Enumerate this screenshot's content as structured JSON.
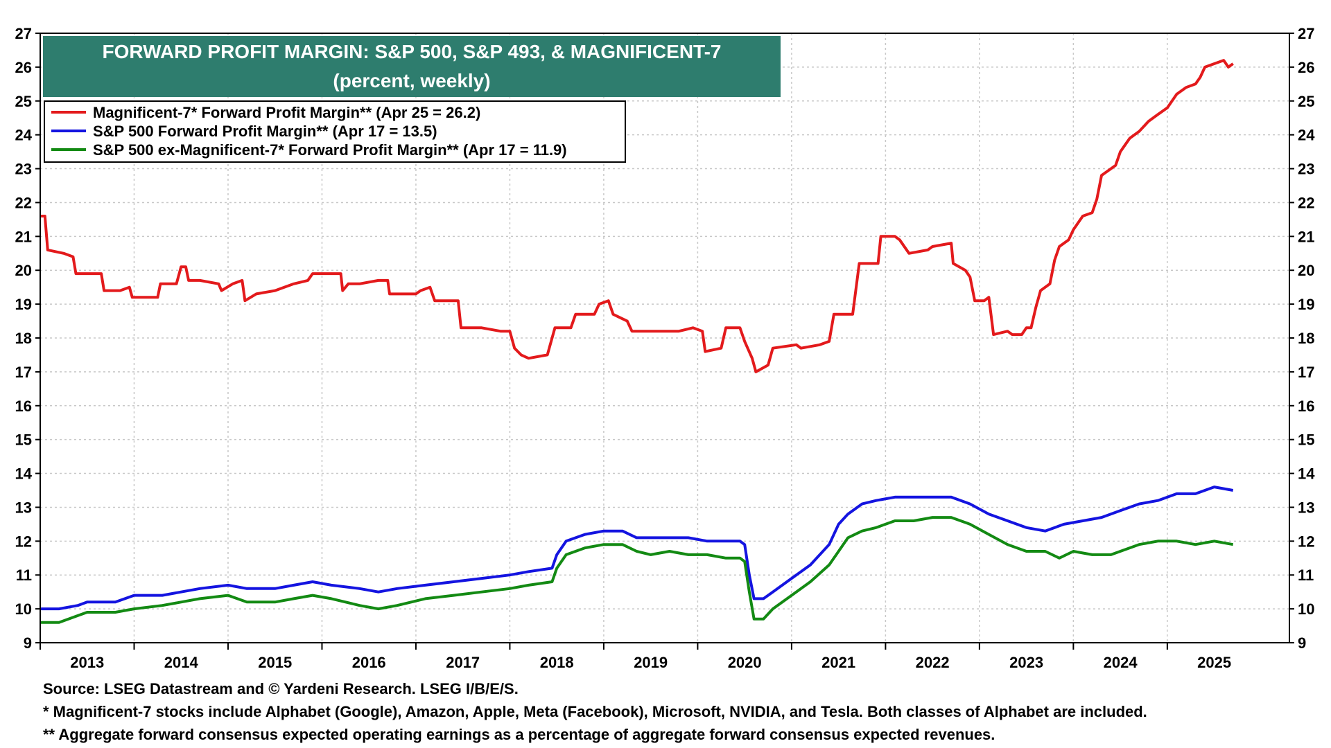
{
  "colors": {
    "mag7": "#e31a1c",
    "sp500": "#1414e0",
    "sp493": "#138a13",
    "title_bg": "#2e7d6e",
    "grid": "#c8c8c8"
  },
  "chart_data": {
    "type": "line",
    "title": "FORWARD PROFIT MARGIN: S&P 500, S&P 493, & MAGNIFICENT-7",
    "subtitle": "(percent, weekly)",
    "ylim": [
      9,
      27
    ],
    "yticks": [
      "9",
      "10",
      "11",
      "12",
      "13",
      "14",
      "15",
      "16",
      "17",
      "18",
      "19",
      "20",
      "21",
      "22",
      "23",
      "24",
      "25",
      "26",
      "27"
    ],
    "xlim": [
      2012.5,
      2025.8
    ],
    "xticks": [
      "2013",
      "2014",
      "2015",
      "2016",
      "2017",
      "2018",
      "2019",
      "2020",
      "2021",
      "2022",
      "2023",
      "2024",
      "2025"
    ],
    "grid": true,
    "legend_position": "top-left",
    "series": [
      {
        "name": "Magnificent-7* Forward Profit Margin** (Apr 25 = 26.2)",
        "color_key": "mag7",
        "points": [
          [
            2012.5,
            21.6
          ],
          [
            2012.55,
            21.6
          ],
          [
            2012.58,
            20.6
          ],
          [
            2012.75,
            20.5
          ],
          [
            2012.85,
            20.4
          ],
          [
            2012.88,
            19.9
          ],
          [
            2013.05,
            19.9
          ],
          [
            2013.15,
            19.9
          ],
          [
            2013.18,
            19.4
          ],
          [
            2013.35,
            19.4
          ],
          [
            2013.45,
            19.5
          ],
          [
            2013.48,
            19.2
          ],
          [
            2013.6,
            19.2
          ],
          [
            2013.75,
            19.2
          ],
          [
            2013.78,
            19.6
          ],
          [
            2013.9,
            19.6
          ],
          [
            2013.95,
            19.6
          ],
          [
            2014.0,
            20.1
          ],
          [
            2014.05,
            20.1
          ],
          [
            2014.08,
            19.7
          ],
          [
            2014.2,
            19.7
          ],
          [
            2014.4,
            19.6
          ],
          [
            2014.43,
            19.4
          ],
          [
            2014.55,
            19.6
          ],
          [
            2014.65,
            19.7
          ],
          [
            2014.68,
            19.1
          ],
          [
            2014.8,
            19.3
          ],
          [
            2015.0,
            19.4
          ],
          [
            2015.2,
            19.6
          ],
          [
            2015.35,
            19.7
          ],
          [
            2015.4,
            19.9
          ],
          [
            2015.55,
            19.9
          ],
          [
            2015.7,
            19.9
          ],
          [
            2015.72,
            19.4
          ],
          [
            2015.78,
            19.6
          ],
          [
            2015.9,
            19.6
          ],
          [
            2016.1,
            19.7
          ],
          [
            2016.2,
            19.7
          ],
          [
            2016.22,
            19.3
          ],
          [
            2016.4,
            19.3
          ],
          [
            2016.5,
            19.3
          ],
          [
            2016.55,
            19.4
          ],
          [
            2016.65,
            19.5
          ],
          [
            2016.7,
            19.1
          ],
          [
            2016.95,
            19.1
          ],
          [
            2016.98,
            18.3
          ],
          [
            2017.2,
            18.3
          ],
          [
            2017.4,
            18.2
          ],
          [
            2017.5,
            18.2
          ],
          [
            2017.55,
            17.7
          ],
          [
            2017.62,
            17.5
          ],
          [
            2017.7,
            17.4
          ],
          [
            2017.9,
            17.5
          ],
          [
            2017.98,
            18.3
          ],
          [
            2018.15,
            18.3
          ],
          [
            2018.2,
            18.7
          ],
          [
            2018.4,
            18.7
          ],
          [
            2018.45,
            19.0
          ],
          [
            2018.55,
            19.1
          ],
          [
            2018.6,
            18.7
          ],
          [
            2018.75,
            18.5
          ],
          [
            2018.8,
            18.2
          ],
          [
            2018.9,
            18.2
          ],
          [
            2019.0,
            18.2
          ],
          [
            2019.1,
            18.2
          ],
          [
            2019.3,
            18.2
          ],
          [
            2019.45,
            18.3
          ],
          [
            2019.55,
            18.2
          ],
          [
            2019.58,
            17.6
          ],
          [
            2019.75,
            17.7
          ],
          [
            2019.8,
            18.3
          ],
          [
            2019.95,
            18.3
          ],
          [
            2020.0,
            17.9
          ],
          [
            2020.08,
            17.4
          ],
          [
            2020.12,
            17.0
          ],
          [
            2020.25,
            17.2
          ],
          [
            2020.3,
            17.7
          ],
          [
            2020.55,
            17.8
          ],
          [
            2020.6,
            17.7
          ],
          [
            2020.8,
            17.8
          ],
          [
            2020.9,
            17.9
          ],
          [
            2020.95,
            18.7
          ],
          [
            2021.15,
            18.7
          ],
          [
            2021.22,
            20.2
          ],
          [
            2021.35,
            20.2
          ],
          [
            2021.42,
            20.2
          ],
          [
            2021.45,
            21.0
          ],
          [
            2021.6,
            21.0
          ],
          [
            2021.65,
            20.9
          ],
          [
            2021.75,
            20.5
          ],
          [
            2021.95,
            20.6
          ],
          [
            2022.0,
            20.7
          ],
          [
            2022.2,
            20.8
          ],
          [
            2022.22,
            20.2
          ],
          [
            2022.35,
            20.0
          ],
          [
            2022.4,
            19.8
          ],
          [
            2022.45,
            19.1
          ],
          [
            2022.55,
            19.1
          ],
          [
            2022.6,
            19.2
          ],
          [
            2022.65,
            18.1
          ],
          [
            2022.8,
            18.2
          ],
          [
            2022.85,
            18.1
          ],
          [
            2022.95,
            18.1
          ],
          [
            2023.0,
            18.3
          ],
          [
            2023.05,
            18.3
          ],
          [
            2023.1,
            18.9
          ],
          [
            2023.15,
            19.4
          ],
          [
            2023.25,
            19.6
          ],
          [
            2023.3,
            20.3
          ],
          [
            2023.35,
            20.7
          ],
          [
            2023.45,
            20.9
          ],
          [
            2023.5,
            21.2
          ],
          [
            2023.6,
            21.6
          ],
          [
            2023.7,
            21.7
          ],
          [
            2023.75,
            22.1
          ],
          [
            2023.8,
            22.8
          ],
          [
            2023.95,
            23.1
          ],
          [
            2024.0,
            23.5
          ],
          [
            2024.05,
            23.7
          ],
          [
            2024.1,
            23.9
          ],
          [
            2024.2,
            24.1
          ],
          [
            2024.3,
            24.4
          ],
          [
            2024.4,
            24.6
          ],
          [
            2024.5,
            24.8
          ],
          [
            2024.6,
            25.2
          ],
          [
            2024.7,
            25.4
          ],
          [
            2024.8,
            25.5
          ],
          [
            2024.85,
            25.7
          ],
          [
            2024.9,
            26.0
          ],
          [
            2025.0,
            26.1
          ],
          [
            2025.1,
            26.2
          ],
          [
            2025.15,
            26.0
          ],
          [
            2025.2,
            26.1
          ]
        ]
      },
      {
        "name": "S&P 500 Forward Profit Margin** (Apr 17 = 13.5)",
        "color_key": "sp500",
        "points": [
          [
            2012.5,
            10.0
          ],
          [
            2012.7,
            10.0
          ],
          [
            2012.9,
            10.1
          ],
          [
            2013.0,
            10.2
          ],
          [
            2013.3,
            10.2
          ],
          [
            2013.5,
            10.4
          ],
          [
            2013.8,
            10.4
          ],
          [
            2014.0,
            10.5
          ],
          [
            2014.2,
            10.6
          ],
          [
            2014.5,
            10.7
          ],
          [
            2014.7,
            10.6
          ],
          [
            2015.0,
            10.6
          ],
          [
            2015.2,
            10.7
          ],
          [
            2015.4,
            10.8
          ],
          [
            2015.6,
            10.7
          ],
          [
            2015.9,
            10.6
          ],
          [
            2016.1,
            10.5
          ],
          [
            2016.3,
            10.6
          ],
          [
            2016.6,
            10.7
          ],
          [
            2016.9,
            10.8
          ],
          [
            2017.2,
            10.9
          ],
          [
            2017.5,
            11.0
          ],
          [
            2017.7,
            11.1
          ],
          [
            2017.95,
            11.2
          ],
          [
            2018.0,
            11.6
          ],
          [
            2018.1,
            12.0
          ],
          [
            2018.3,
            12.2
          ],
          [
            2018.5,
            12.3
          ],
          [
            2018.7,
            12.3
          ],
          [
            2018.85,
            12.1
          ],
          [
            2019.0,
            12.1
          ],
          [
            2019.2,
            12.1
          ],
          [
            2019.4,
            12.1
          ],
          [
            2019.6,
            12.0
          ],
          [
            2019.8,
            12.0
          ],
          [
            2019.95,
            12.0
          ],
          [
            2020.0,
            11.9
          ],
          [
            2020.05,
            11.0
          ],
          [
            2020.1,
            10.3
          ],
          [
            2020.2,
            10.3
          ],
          [
            2020.3,
            10.5
          ],
          [
            2020.5,
            10.9
          ],
          [
            2020.7,
            11.3
          ],
          [
            2020.9,
            11.9
          ],
          [
            2021.0,
            12.5
          ],
          [
            2021.1,
            12.8
          ],
          [
            2021.25,
            13.1
          ],
          [
            2021.4,
            13.2
          ],
          [
            2021.6,
            13.3
          ],
          [
            2021.8,
            13.3
          ],
          [
            2022.0,
            13.3
          ],
          [
            2022.2,
            13.3
          ],
          [
            2022.4,
            13.1
          ],
          [
            2022.6,
            12.8
          ],
          [
            2022.8,
            12.6
          ],
          [
            2023.0,
            12.4
          ],
          [
            2023.2,
            12.3
          ],
          [
            2023.4,
            12.5
          ],
          [
            2023.6,
            12.6
          ],
          [
            2023.8,
            12.7
          ],
          [
            2024.0,
            12.9
          ],
          [
            2024.2,
            13.1
          ],
          [
            2024.4,
            13.2
          ],
          [
            2024.6,
            13.4
          ],
          [
            2024.8,
            13.4
          ],
          [
            2025.0,
            13.6
          ],
          [
            2025.2,
            13.5
          ]
        ]
      },
      {
        "name": "S&P 500 ex-Magnificent-7* Forward Profit Margin** (Apr 17 = 11.9)",
        "color_key": "sp493",
        "points": [
          [
            2012.5,
            9.6
          ],
          [
            2012.7,
            9.6
          ],
          [
            2012.9,
            9.8
          ],
          [
            2013.0,
            9.9
          ],
          [
            2013.3,
            9.9
          ],
          [
            2013.5,
            10.0
          ],
          [
            2013.8,
            10.1
          ],
          [
            2014.0,
            10.2
          ],
          [
            2014.2,
            10.3
          ],
          [
            2014.5,
            10.4
          ],
          [
            2014.7,
            10.2
          ],
          [
            2015.0,
            10.2
          ],
          [
            2015.2,
            10.3
          ],
          [
            2015.4,
            10.4
          ],
          [
            2015.6,
            10.3
          ],
          [
            2015.9,
            10.1
          ],
          [
            2016.1,
            10.0
          ],
          [
            2016.3,
            10.1
          ],
          [
            2016.6,
            10.3
          ],
          [
            2016.9,
            10.4
          ],
          [
            2017.2,
            10.5
          ],
          [
            2017.5,
            10.6
          ],
          [
            2017.7,
            10.7
          ],
          [
            2017.95,
            10.8
          ],
          [
            2018.0,
            11.2
          ],
          [
            2018.1,
            11.6
          ],
          [
            2018.3,
            11.8
          ],
          [
            2018.5,
            11.9
          ],
          [
            2018.7,
            11.9
          ],
          [
            2018.85,
            11.7
          ],
          [
            2019.0,
            11.6
          ],
          [
            2019.2,
            11.7
          ],
          [
            2019.4,
            11.6
          ],
          [
            2019.6,
            11.6
          ],
          [
            2019.8,
            11.5
          ],
          [
            2019.95,
            11.5
          ],
          [
            2020.0,
            11.4
          ],
          [
            2020.05,
            10.5
          ],
          [
            2020.1,
            9.7
          ],
          [
            2020.2,
            9.7
          ],
          [
            2020.3,
            10.0
          ],
          [
            2020.5,
            10.4
          ],
          [
            2020.7,
            10.8
          ],
          [
            2020.9,
            11.3
          ],
          [
            2021.0,
            11.7
          ],
          [
            2021.1,
            12.1
          ],
          [
            2021.25,
            12.3
          ],
          [
            2021.4,
            12.4
          ],
          [
            2021.6,
            12.6
          ],
          [
            2021.8,
            12.6
          ],
          [
            2022.0,
            12.7
          ],
          [
            2022.2,
            12.7
          ],
          [
            2022.4,
            12.5
          ],
          [
            2022.6,
            12.2
          ],
          [
            2022.8,
            11.9
          ],
          [
            2023.0,
            11.7
          ],
          [
            2023.2,
            11.7
          ],
          [
            2023.35,
            11.5
          ],
          [
            2023.5,
            11.7
          ],
          [
            2023.7,
            11.6
          ],
          [
            2023.9,
            11.6
          ],
          [
            2024.0,
            11.7
          ],
          [
            2024.2,
            11.9
          ],
          [
            2024.4,
            12.0
          ],
          [
            2024.6,
            12.0
          ],
          [
            2024.8,
            11.9
          ],
          [
            2025.0,
            12.0
          ],
          [
            2025.2,
            11.9
          ]
        ]
      }
    ]
  },
  "footnotes": {
    "source": "Source: LSEG Datastream and © Yardeni Research. LSEG I/B/E/S.",
    "note1": "* Magnificent-7 stocks include Alphabet (Google), Amazon, Apple, Meta (Facebook), Microsoft, NVIDIA, and Tesla. Both classes of Alphabet are included.",
    "note2": "** Aggregate forward consensus expected operating earnings as a percentage of aggregate forward consensus expected revenues."
  }
}
